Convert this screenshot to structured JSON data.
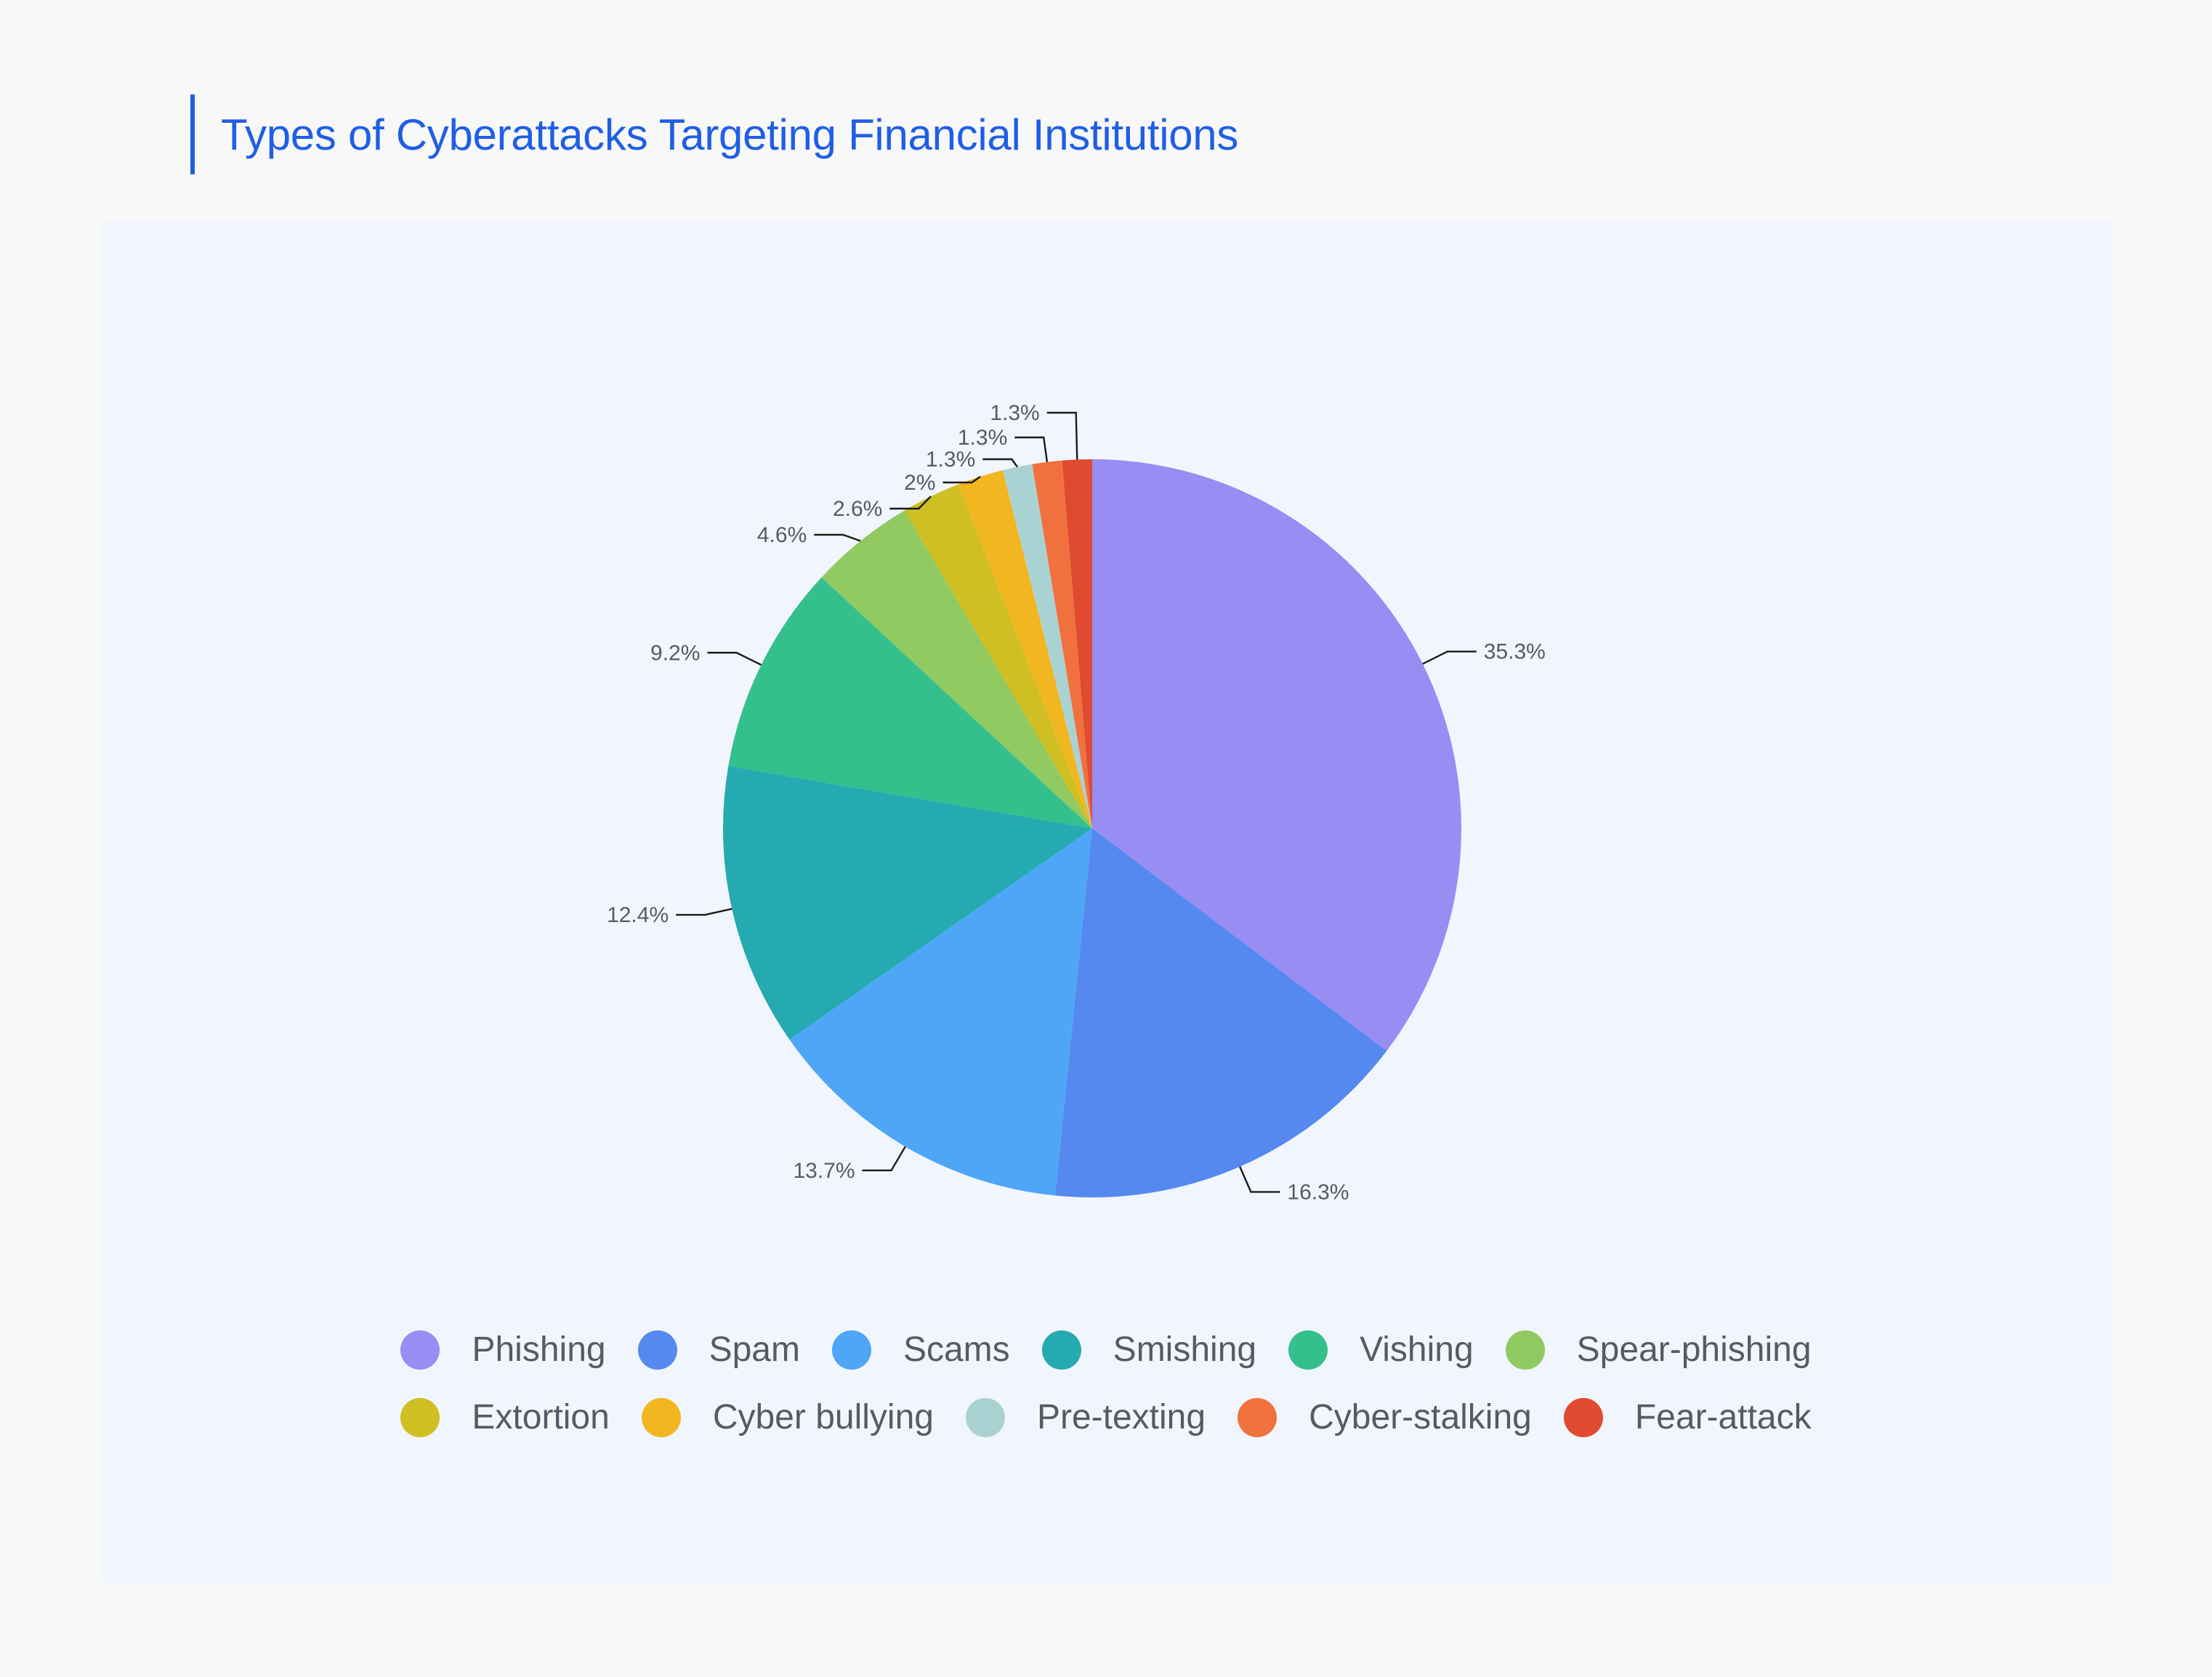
{
  "title": "Types of Cyberattacks Targeting Financial Institutions",
  "chart_data": {
    "type": "pie",
    "title": "Types of Cyberattacks Targeting Financial Institutions",
    "slices": [
      {
        "label": "Phishing",
        "value": 35.3,
        "display": "35.3%",
        "color": "#988df3"
      },
      {
        "label": "Spam",
        "value": 16.3,
        "display": "16.3%",
        "color": "#5589ef"
      },
      {
        "label": "Scams",
        "value": 13.7,
        "display": "13.7%",
        "color": "#4fa6f7"
      },
      {
        "label": "Smishing",
        "value": 12.4,
        "display": "12.4%",
        "color": "#24aab0"
      },
      {
        "label": "Vishing",
        "value": 9.2,
        "display": "9.2%",
        "color": "#34c08d"
      },
      {
        "label": "Spear-phishing",
        "value": 4.6,
        "display": "4.6%",
        "color": "#90ca60"
      },
      {
        "label": "Extortion",
        "value": 2.6,
        "display": "2.6%",
        "color": "#d0bf22"
      },
      {
        "label": "Cyber bullying",
        "value": 2.0,
        "display": "2%",
        "color": "#f2b620"
      },
      {
        "label": "Pre-texting",
        "value": 1.3,
        "display": "1.3%",
        "color": "#abd2d2"
      },
      {
        "label": "Cyber-stalking",
        "value": 1.3,
        "display": "1.3%",
        "color": "#f0713d"
      },
      {
        "label": "Fear-attack",
        "value": 1.3,
        "display": "1.3%",
        "color": "#df4a30"
      }
    ],
    "legend_position": "bottom"
  },
  "legend": {
    "rows": [
      [
        {
          "label": "Phishing",
          "color": "#988df3"
        },
        {
          "label": "Spam",
          "color": "#5589ef"
        },
        {
          "label": "Scams",
          "color": "#4fa6f7"
        },
        {
          "label": "Smishing",
          "color": "#24aab0"
        },
        {
          "label": "Vishing",
          "color": "#34c08d"
        },
        {
          "label": "Spear-phishing",
          "color": "#90ca60"
        }
      ],
      [
        {
          "label": "Extortion",
          "color": "#d0bf22"
        },
        {
          "label": "Cyber bullying",
          "color": "#f2b620"
        },
        {
          "label": "Pre-texting",
          "color": "#abd2d2"
        },
        {
          "label": "Cyber-stalking",
          "color": "#f0713d"
        },
        {
          "label": "Fear-attack",
          "color": "#df4a30"
        }
      ]
    ]
  }
}
